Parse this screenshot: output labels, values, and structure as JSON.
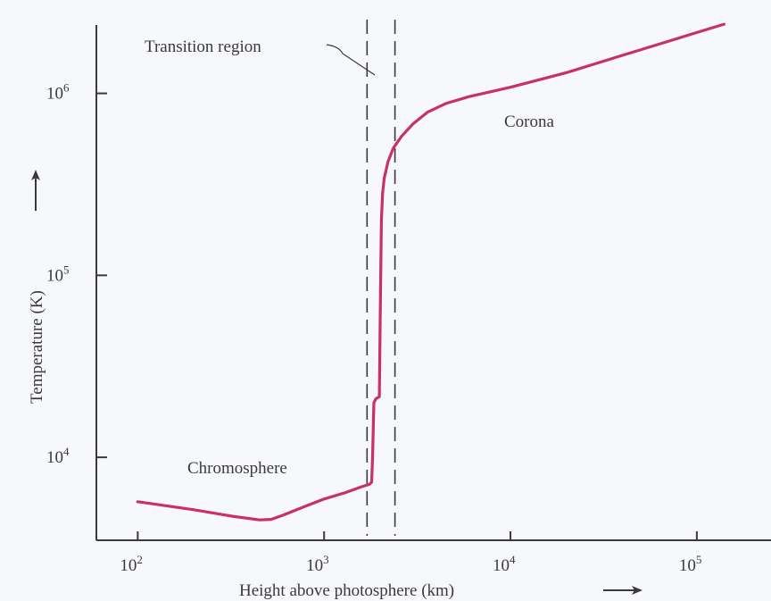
{
  "chart_data": {
    "type": "line",
    "xlabel": "Height above photosphere (km)",
    "ylabel": "Temperature (K)",
    "x_scale": "log",
    "y_scale": "log",
    "xlim": [
      60,
      250000
    ],
    "ylim": [
      3500,
      2600000
    ],
    "x_ticks": [
      100,
      1000,
      10000,
      100000
    ],
    "x_tick_labels": [
      {
        "base": "10",
        "exp": "2"
      },
      {
        "base": "10",
        "exp": "3"
      },
      {
        "base": "10",
        "exp": "4"
      },
      {
        "base": "10",
        "exp": "5"
      }
    ],
    "y_ticks": [
      10000,
      100000,
      1000000
    ],
    "y_tick_labels": [
      {
        "base": "10",
        "exp": "4"
      },
      {
        "base": "10",
        "exp": "5"
      },
      {
        "base": "10",
        "exp": "6"
      }
    ],
    "grid": false,
    "series_color": "#c8306a",
    "series": [
      {
        "x": [
          100,
          200,
          320,
          450,
          520,
          600,
          800,
          1000,
          1300,
          1600,
          1750,
          1800,
          1820,
          1850,
          1900,
          1980,
          2000,
          2030,
          2060,
          2100,
          2200,
          2350,
          2600,
          3000,
          3600,
          4500,
          6000,
          10000,
          20000,
          40000,
          70000,
          100000,
          140000
        ],
        "y": [
          5700,
          5150,
          4750,
          4530,
          4560,
          4800,
          5400,
          5900,
          6400,
          6900,
          7100,
          7300,
          10000,
          20000,
          21000,
          21500,
          60000,
          200000,
          280000,
          340000,
          420000,
          500000,
          580000,
          680000,
          790000,
          880000,
          960000,
          1080000,
          1300000,
          1620000,
          1930000,
          2160000,
          2400000
        ]
      }
    ],
    "vlines": [
      {
        "x": 1700,
        "style": "dashed"
      },
      {
        "x": 2400,
        "style": "dashed"
      }
    ],
    "annotations": {
      "transition": "Transition region",
      "corona": "Corona",
      "chromosphere": "Chromosphere"
    }
  }
}
